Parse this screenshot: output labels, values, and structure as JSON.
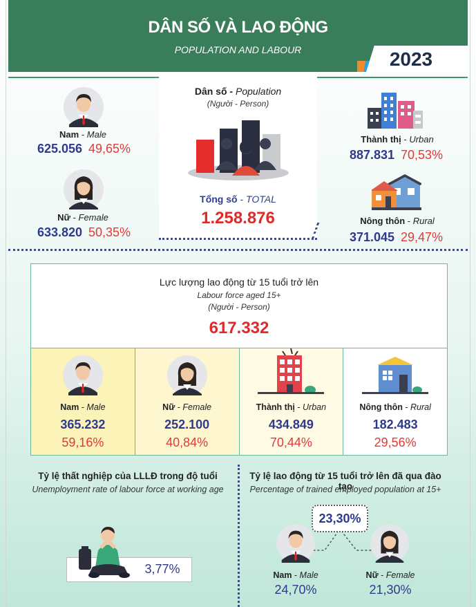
{
  "header": {
    "title": "DÂN SỐ VÀ LAO ĐỘNG",
    "subtitle": "POPULATION AND LABOUR",
    "year": "2023"
  },
  "population": {
    "title_vi": "Dân số",
    "title_en": "Population",
    "sep": " - ",
    "unit": "(Người - Person)",
    "total_label_vi": "Tổng số",
    "total_label_en": "TOTAL",
    "total": "1.258.876",
    "male": {
      "label_vi": "Nam",
      "label_en": "Male",
      "value": "625.056",
      "pct": "49,65%"
    },
    "female": {
      "label_vi": "Nữ",
      "label_en": "Female",
      "value": "633.820",
      "pct": "50,35%"
    },
    "urban": {
      "label_vi": "Thành thị",
      "label_en": "Urban",
      "value": "887.831",
      "pct": "70,53%"
    },
    "rural": {
      "label_vi": "Nông thôn",
      "label_en": "Rural",
      "value": "371.045",
      "pct": "29,47%"
    }
  },
  "labour": {
    "title_vi": "Lực lượng lao động từ 15 tuổi trở lên",
    "title_en": "Labour force aged 15+",
    "unit": "(Người - Person)",
    "total": "617.332",
    "cards": [
      {
        "label_vi": "Nam",
        "label_en": "Male",
        "value": "365.232",
        "pct": "59,16%",
        "bg": "#fbf3b8",
        "icon": "male-avatar-icon"
      },
      {
        "label_vi": "Nữ",
        "label_en": "Female",
        "value": "252.100",
        "pct": "40,84%",
        "bg": "#fdf6cf",
        "icon": "female-avatar-icon"
      },
      {
        "label_vi": "Thành thị",
        "label_en": "Urban",
        "value": "434.849",
        "pct": "70,44%",
        "bg": "#fefae3",
        "icon": "city-building-icon"
      },
      {
        "label_vi": "Nông thôn",
        "label_en": "Rural",
        "value": "182.483",
        "pct": "29,56%",
        "bg": "#ffffff",
        "icon": "house-icon"
      }
    ]
  },
  "unemployment": {
    "title_vi": "Tỷ lệ thất nghiệp của LLLĐ trong độ tuổi",
    "title_en": "Unemployment rate of labour force at working age",
    "value": "3,77%"
  },
  "trained": {
    "title_vi": "Tỷ lệ lao động từ 15 tuổi trở lên đã qua đào tạo",
    "title_en": "Percentage of trained employed population at 15+",
    "total": "23,30%",
    "male": {
      "label_vi": "Nam",
      "label_en": "Male",
      "pct": "24,70%"
    },
    "female": {
      "label_vi": "Nữ",
      "label_en": "Female",
      "pct": "21,30%"
    }
  }
}
